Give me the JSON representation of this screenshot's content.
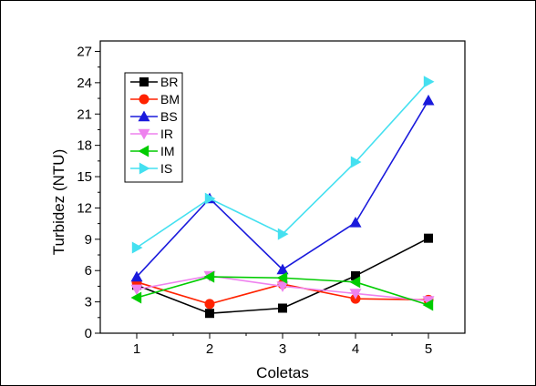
{
  "chart_data": {
    "type": "line",
    "title": "",
    "xlabel": "Coletas",
    "ylabel": "Turbidez (NTU)",
    "categories": [
      1,
      2,
      3,
      4,
      5
    ],
    "xlim": [
      0.5,
      5.5
    ],
    "ylim": [
      0,
      28
    ],
    "x_ticks": [
      "1",
      "2",
      "3",
      "4",
      "5"
    ],
    "y_ticks": [
      "0",
      "3",
      "6",
      "9",
      "12",
      "15",
      "18",
      "21",
      "24",
      "27"
    ],
    "grid": false,
    "legend_position": "top-left",
    "series": [
      {
        "name": "BR",
        "color": "#000000",
        "marker": "square",
        "values": [
          4.6,
          1.9,
          2.4,
          5.5,
          9.1
        ]
      },
      {
        "name": "BM",
        "color": "#ff2200",
        "marker": "circle",
        "values": [
          4.9,
          2.8,
          4.7,
          3.3,
          3.2
        ]
      },
      {
        "name": "BS",
        "color": "#1a1adc",
        "marker": "triangle-up",
        "values": [
          5.4,
          12.9,
          6.1,
          10.6,
          22.3
        ]
      },
      {
        "name": "IR",
        "color": "#ee82ee",
        "marker": "triangle-down",
        "values": [
          4.2,
          5.5,
          4.5,
          3.8,
          3.1
        ]
      },
      {
        "name": "IM",
        "color": "#00cc00",
        "marker": "triangle-left",
        "values": [
          3.4,
          5.4,
          5.3,
          4.9,
          2.7
        ]
      },
      {
        "name": "IS",
        "color": "#44e0f0",
        "marker": "triangle-right",
        "values": [
          8.2,
          12.9,
          9.5,
          16.4,
          24.1
        ]
      }
    ]
  }
}
